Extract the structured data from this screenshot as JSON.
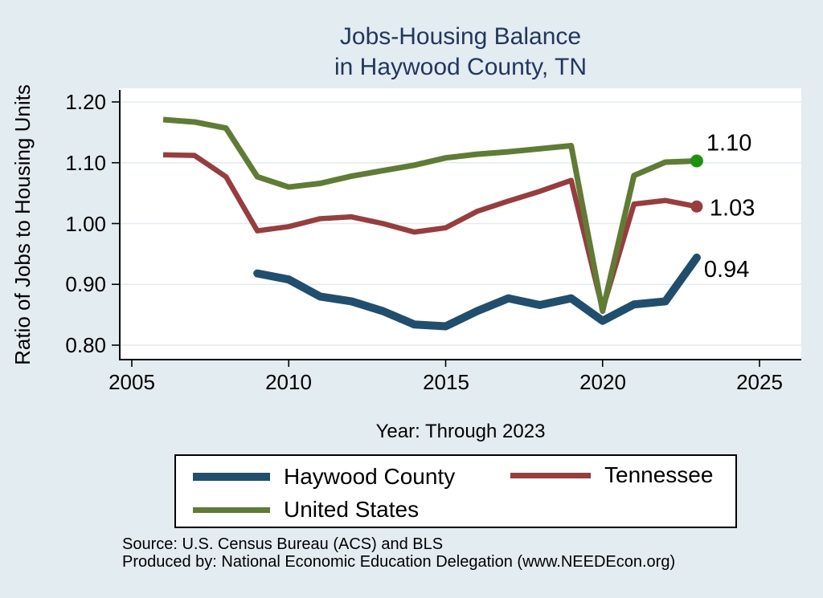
{
  "title": {
    "line1": "Jobs-Housing Balance",
    "line2": "in Haywood County, TN"
  },
  "chart_data": {
    "type": "line",
    "title": "Jobs-Housing Balance in Haywood County, TN",
    "xlabel": "Year: Through 2023",
    "ylabel": "Ratio of Jobs to Housing Units",
    "xlim": [
      2005,
      2025
    ],
    "ylim": [
      0.8,
      1.2
    ],
    "grid": true,
    "legend_position": "bottom",
    "xtick_values": [
      2005,
      2010,
      2015,
      2020,
      2025
    ],
    "xtick_labels": [
      "2005",
      "2010",
      "2015",
      "2020",
      "2025"
    ],
    "ytick_values": [
      1.2,
      1.1,
      1.0,
      0.9,
      0.8
    ],
    "ytick_labels": [
      "1.20",
      "1.10",
      "1.00",
      "0.90",
      "0.80"
    ],
    "series": [
      {
        "name": "Haywood County",
        "color": "#1f4e6f",
        "line_width": 10,
        "years": [
          2009,
          2010,
          2011,
          2012,
          2013,
          2014,
          2015,
          2016,
          2017,
          2018,
          2019,
          2020,
          2021,
          2022,
          2023
        ],
        "values": [
          0.918,
          0.908,
          0.88,
          0.872,
          0.856,
          0.834,
          0.831,
          0.856,
          0.877,
          0.866,
          0.877,
          0.84,
          0.867,
          0.872,
          0.944
        ],
        "end_label": "0.94",
        "end_dot": false,
        "dot_color": "#1f4e6f"
      },
      {
        "name": "Tennessee",
        "color": "#9a3b3e",
        "line_width": 6.5,
        "years": [
          2006,
          2007,
          2008,
          2009,
          2010,
          2011,
          2012,
          2013,
          2014,
          2015,
          2016,
          2017,
          2018,
          2019,
          2020,
          2021,
          2022,
          2023
        ],
        "values": [
          1.113,
          1.112,
          1.077,
          0.988,
          0.995,
          1.008,
          1.011,
          1.0,
          0.986,
          0.993,
          1.02,
          1.037,
          1.053,
          1.071,
          0.859,
          1.032,
          1.038,
          1.028
        ],
        "end_label": "1.03",
        "end_dot": true,
        "dot_color": "#9a3b3e"
      },
      {
        "name": "United States",
        "color": "#5e7d33",
        "line_width": 7,
        "years": [
          2006,
          2007,
          2008,
          2009,
          2010,
          2011,
          2012,
          2013,
          2014,
          2015,
          2016,
          2017,
          2018,
          2019,
          2020,
          2021,
          2022,
          2023
        ],
        "values": [
          1.171,
          1.167,
          1.157,
          1.077,
          1.06,
          1.066,
          1.078,
          1.087,
          1.096,
          1.108,
          1.114,
          1.118,
          1.123,
          1.128,
          0.856,
          1.079,
          1.101,
          1.103
        ],
        "end_label": "1.10",
        "end_dot": true,
        "dot_color": "#1d9410"
      }
    ]
  },
  "colors": {
    "background": "#e3edf1",
    "plot_background": "#ffffff",
    "grid": "#e2ebf2",
    "axis": "#000000",
    "title": "#22375f",
    "end_label_text": "#000000"
  },
  "footer": {
    "line1": "Source: U.S. Census Bureau (ACS) and BLS",
    "line2": "Produced by: National Economic Education Delegation (www.NEEDEcon.org)"
  }
}
